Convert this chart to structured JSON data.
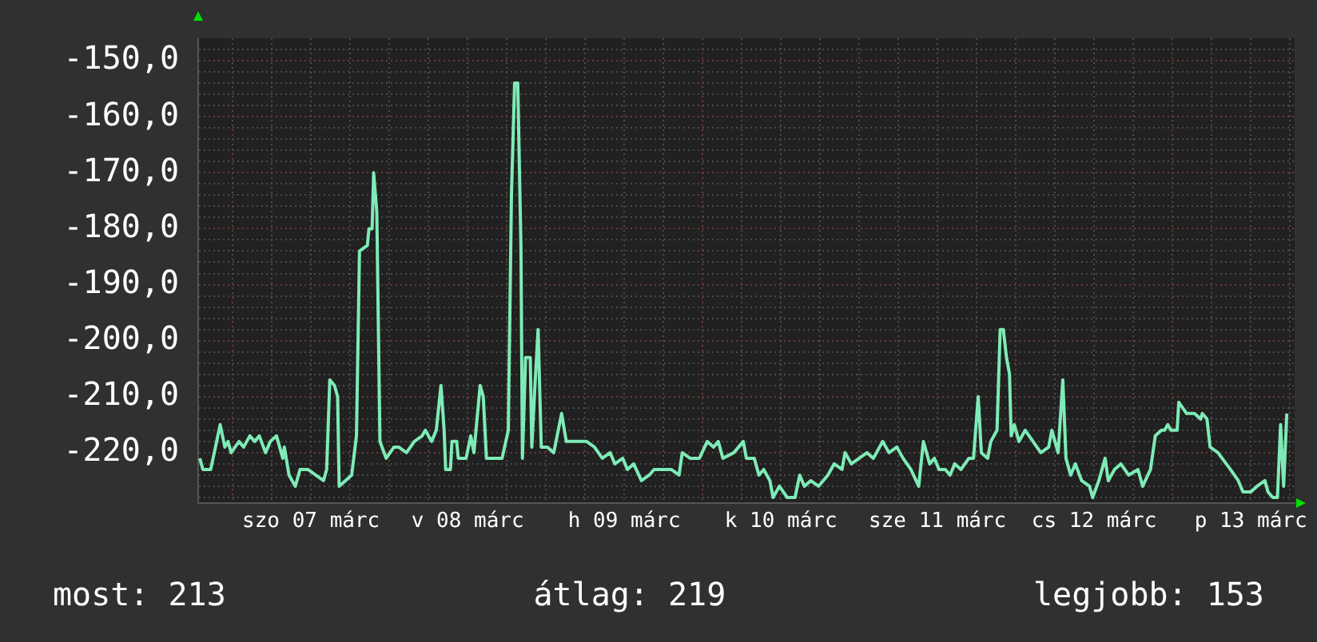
{
  "chart_data": {
    "type": "line",
    "xlim": [
      "--03-06T18:43",
      "--03-13T18:43"
    ],
    "ylim": [
      -229,
      -146
    ],
    "xticks": [
      {
        "value": "--03-07T00:00",
        "label": null
      },
      {
        "value": "--03-07T06:00",
        "label": null
      },
      {
        "value": "--03-07T12:00",
        "label": "szo 07 márc"
      },
      {
        "value": "--03-07T18:00",
        "label": null
      },
      {
        "value": "--03-08T00:00",
        "label": null
      },
      {
        "value": "--03-08T06:00",
        "label": null
      },
      {
        "value": "--03-08T12:00",
        "label": "v 08 márc"
      },
      {
        "value": "--03-08T18:00",
        "label": null
      },
      {
        "value": "--03-09T00:00",
        "label": null
      },
      {
        "value": "--03-09T06:00",
        "label": null
      },
      {
        "value": "--03-09T12:00",
        "label": "h 09 márc"
      },
      {
        "value": "--03-09T18:00",
        "label": null
      },
      {
        "value": "--03-10T00:00",
        "label": null
      },
      {
        "value": "--03-10T06:00",
        "label": null
      },
      {
        "value": "--03-10T12:00",
        "label": "k 10 márc"
      },
      {
        "value": "--03-10T18:00",
        "label": null
      },
      {
        "value": "--03-11T00:00",
        "label": null
      },
      {
        "value": "--03-11T06:00",
        "label": null
      },
      {
        "value": "--03-11T12:00",
        "label": "sze 11 márc"
      },
      {
        "value": "--03-11T18:00",
        "label": null
      },
      {
        "value": "--03-12T00:00",
        "label": null
      },
      {
        "value": "--03-12T06:00",
        "label": null
      },
      {
        "value": "--03-12T12:00",
        "label": "cs 12 márc"
      },
      {
        "value": "--03-12T18:00",
        "label": null
      },
      {
        "value": "--03-13T00:00",
        "label": null
      },
      {
        "value": "--03-13T06:00",
        "label": null
      },
      {
        "value": "--03-13T12:00",
        "label": "p 13 márc"
      },
      {
        "value": "--03-13T18:00",
        "label": null
      }
    ],
    "yticks": [
      {
        "value": -148,
        "label": null
      },
      {
        "value": -150,
        "label": "-150,0"
      },
      {
        "value": -152,
        "label": null
      },
      {
        "value": -154,
        "label": null
      },
      {
        "value": -156,
        "label": null
      },
      {
        "value": -158,
        "label": null
      },
      {
        "value": -160,
        "label": "-160,0"
      },
      {
        "value": -162,
        "label": null
      },
      {
        "value": -164,
        "label": null
      },
      {
        "value": -166,
        "label": null
      },
      {
        "value": -168,
        "label": null
      },
      {
        "value": -170,
        "label": "-170,0"
      },
      {
        "value": -172,
        "label": null
      },
      {
        "value": -174,
        "label": null
      },
      {
        "value": -176,
        "label": null
      },
      {
        "value": -178,
        "label": null
      },
      {
        "value": -180,
        "label": "-180,0"
      },
      {
        "value": -182,
        "label": null
      },
      {
        "value": -184,
        "label": null
      },
      {
        "value": -186,
        "label": null
      },
      {
        "value": -188,
        "label": null
      },
      {
        "value": -190,
        "label": "-190,0"
      },
      {
        "value": -192,
        "label": null
      },
      {
        "value": -194,
        "label": null
      },
      {
        "value": -196,
        "label": null
      },
      {
        "value": -198,
        "label": null
      },
      {
        "value": -200,
        "label": "-200,0"
      },
      {
        "value": -202,
        "label": null
      },
      {
        "value": -204,
        "label": null
      },
      {
        "value": -206,
        "label": null
      },
      {
        "value": -208,
        "label": null
      },
      {
        "value": -210,
        "label": "-210,0"
      },
      {
        "value": -212,
        "label": null
      },
      {
        "value": -214,
        "label": null
      },
      {
        "value": -216,
        "label": null
      },
      {
        "value": -218,
        "label": null
      },
      {
        "value": -220,
        "label": "-220,0"
      },
      {
        "value": -222,
        "label": null
      },
      {
        "value": -224,
        "label": null
      },
      {
        "value": -226,
        "label": null
      },
      {
        "value": -228,
        "label": null
      }
    ],
    "grid": true,
    "annotations": [
      "most: 213",
      "átlag: 219",
      "legjobb: 153"
    ],
    "series": [
      {
        "color": "#7eebb6",
        "x": [
          "--03-06T18:58",
          "--03-06T19:26",
          "--03-06T20:38",
          "--03-06T21:22",
          "--03-06T22:05",
          "--03-06T22:48",
          "--03-06T23:17",
          "--03-06T23:46",
          "--03-07T00:58",
          "--03-07T01:41",
          "--03-07T02:38",
          "--03-07T03:22",
          "--03-07T04:05",
          "--03-07T05:02",
          "--03-07T05:46",
          "--03-07T06:43",
          "--03-07T07:41",
          "--03-07T07:55",
          "--03-07T08:38",
          "--03-07T09:36",
          "--03-07T10:19",
          "--03-07T11:31",
          "--03-07T12:43",
          "--03-07T13:55",
          "--03-07T14:24",
          "--03-07T14:53",
          "--03-07T15:36",
          "--03-07T16:05",
          "--03-07T16:19",
          "--03-07T17:17",
          "--03-07T18:14",
          "--03-07T18:58",
          "--03-07T19:26",
          "--03-07T20:38",
          "--03-07T20:53",
          "--03-07T21:22",
          "--03-07T21:36",
          "--03-07T22:05",
          "--03-07T22:34",
          "--03-07T23:31",
          "--03-08T00:43",
          "--03-08T01:26",
          "--03-08T02:38",
          "--03-08T03:50",
          "--03-08T05:02",
          "--03-08T05:31",
          "--03-08T06:29",
          "--03-08T07:12",
          "--03-08T07:55",
          "--03-08T08:24",
          "--03-08T08:38",
          "--03-08T09:22",
          "--03-08T09:36",
          "--03-08T10:19",
          "--03-08T10:34",
          "--03-08T11:46",
          "--03-08T12:29",
          "--03-08T12:58",
          "--03-08T13:55",
          "--03-08T14:24",
          "--03-08T14:53",
          "--03-08T16:05",
          "--03-08T17:17",
          "--03-08T18:14",
          "--03-08T18:43",
          "--03-08T19:12",
          "--03-08T19:41",
          "--03-08T20:10",
          "--03-08T20:24",
          "--03-08T20:53",
          "--03-08T21:36",
          "--03-08T21:50",
          "--03-08T22:19",
          "--03-08T22:48",
          "--03-08T23:17",
          "--03-09T00:14",
          "--03-09T01:12",
          "--03-09T02:24",
          "--03-09T03:07",
          "--03-09T04:19",
          "--03-09T06:14",
          "--03-09T07:26",
          "--03-09T08:38",
          "--03-09T09:50",
          "--03-09T10:34",
          "--03-09T11:46",
          "--03-09T12:29",
          "--03-09T13:26",
          "--03-09T14:38",
          "--03-09T15:50",
          "--03-09T16:34",
          "--03-09T17:46",
          "--03-09T19:12",
          "--03-09T20:24",
          "--03-09T20:53",
          "--03-09T22:05",
          "--03-09T22:48",
          "--03-09T23:31",
          "--03-10T00:43",
          "--03-10T01:41",
          "--03-10T02:24",
          "--03-10T03:07",
          "--03-10T04:48",
          "--03-10T06:14",
          "--03-10T06:43",
          "--03-10T07:55",
          "--03-10T08:38",
          "--03-10T09:22",
          "--03-10T10:19",
          "--03-10T10:48",
          "--03-10T11:46",
          "--03-10T12:58",
          "--03-10T14:10",
          "--03-10T14:53",
          "--03-10T15:36",
          "--03-10T16:34",
          "--03-10T17:46",
          "--03-10T19:12",
          "--03-10T20:10",
          "--03-10T21:22",
          "--03-10T21:50",
          "--03-10T22:48",
          "--03-11T00:00",
          "--03-11T01:12",
          "--03-11T02:10",
          "--03-11T03:36",
          "--03-11T04:34",
          "--03-11T05:46",
          "--03-11T06:43",
          "--03-11T07:55",
          "--03-11T09:07",
          "--03-11T09:50",
          "--03-11T10:48",
          "--03-11T11:31",
          "--03-11T12:14",
          "--03-11T13:12",
          "--03-11T13:55",
          "--03-11T14:38",
          "--03-11T15:36",
          "--03-11T16:48",
          "--03-11T17:31",
          "--03-11T18:14",
          "--03-11T18:43",
          "--03-11T19:41",
          "--03-11T20:10",
          "--03-11T21:07",
          "--03-11T21:36",
          "--03-11T22:05",
          "--03-11T22:34",
          "--03-11T23:02",
          "--03-11T23:17",
          "--03-11T23:46",
          "--03-12T00:29",
          "--03-12T01:26",
          "--03-12T02:38",
          "--03-12T03:50",
          "--03-12T05:02",
          "--03-12T05:31",
          "--03-12T06:29",
          "--03-12T07:12",
          "--03-12T07:41",
          "--03-12T08:24",
          "--03-12T09:07",
          "--03-12T10:05",
          "--03-12T11:17",
          "--03-12T11:46",
          "--03-12T12:43",
          "--03-12T13:41",
          "--03-12T14:10",
          "--03-12T15:07",
          "--03-12T16:05",
          "--03-12T17:17",
          "--03-12T18:43",
          "--03-12T19:26",
          "--03-12T20:38",
          "--03-12T21:22",
          "--03-12T22:19",
          "--03-12T22:48",
          "--03-12T23:17",
          "--03-12T23:46",
          "--03-13T00:43",
          "--03-13T00:58",
          "--03-13T02:10",
          "--03-13T03:22",
          "--03-13T04:19",
          "--03-13T04:34",
          "--03-13T05:17",
          "--03-13T05:46",
          "--03-13T06:58",
          "--03-13T08:53",
          "--03-13T10:05",
          "--03-13T10:48",
          "--03-13T12:00",
          "--03-13T12:58",
          "--03-13T14:10",
          "--03-13T14:38",
          "--03-13T15:22",
          "--03-13T16:05",
          "--03-13T16:34",
          "--03-13T17:02",
          "--03-13T17:31"
        ],
        "values": [
          -221,
          -223,
          -223,
          -219,
          -215,
          -219,
          -218,
          -220,
          -218,
          -219,
          -217,
          -218,
          -217,
          -220,
          -218,
          -217,
          -221,
          -219,
          -224,
          -226,
          -223,
          -223,
          -224,
          -225,
          -223,
          -207,
          -208,
          -210,
          -226,
          -225,
          -224,
          -217,
          -184,
          -183,
          -180,
          -180,
          -170,
          -177,
          -218,
          -221,
          -219,
          -219,
          -220,
          -218,
          -217,
          -216,
          -218,
          -216,
          -208,
          -216,
          -223,
          -223,
          -218,
          -218,
          -221,
          -221,
          -217,
          -220,
          -208,
          -210,
          -221,
          -221,
          -221,
          -216,
          -174,
          -154,
          -154,
          -183,
          -221,
          -203,
          -203,
          -219,
          -208,
          -198,
          -219,
          -219,
          -220,
          -213,
          -218,
          -218,
          -218,
          -219,
          -221,
          -220,
          -222,
          -221,
          -223,
          -222,
          -225,
          -224,
          -223,
          -223,
          -223,
          -224,
          -220,
          -221,
          -221,
          -221,
          -218,
          -219,
          -218,
          -221,
          -220,
          -218,
          -221,
          -221,
          -224,
          -223,
          -225,
          -228,
          -226,
          -228,
          -228,
          -224,
          -226,
          -225,
          -226,
          -224,
          -222,
          -223,
          -220,
          -222,
          -221,
          -220,
          -221,
          -218,
          -220,
          -219,
          -221,
          -223,
          -226,
          -218,
          -222,
          -221,
          -223,
          -223,
          -224,
          -222,
          -223,
          -221,
          -221,
          -210,
          -220,
          -221,
          -218,
          -216,
          -198,
          -198,
          -203,
          -206,
          -217,
          -215,
          -218,
          -216,
          -218,
          -220,
          -219,
          -216,
          -220,
          -207,
          -221,
          -224,
          -222,
          -225,
          -226,
          -228,
          -225,
          -221,
          -225,
          -223,
          -222,
          -224,
          -223,
          -226,
          -223,
          -217,
          -216,
          -216,
          -215,
          -216,
          -216,
          -211,
          -213,
          -213,
          -214,
          -213,
          -214,
          -219,
          -220,
          -223,
          -225,
          -227,
          -227,
          -226,
          -225,
          -227,
          -228,
          -228,
          -215,
          -226,
          -213
        ]
      }
    ]
  }
}
